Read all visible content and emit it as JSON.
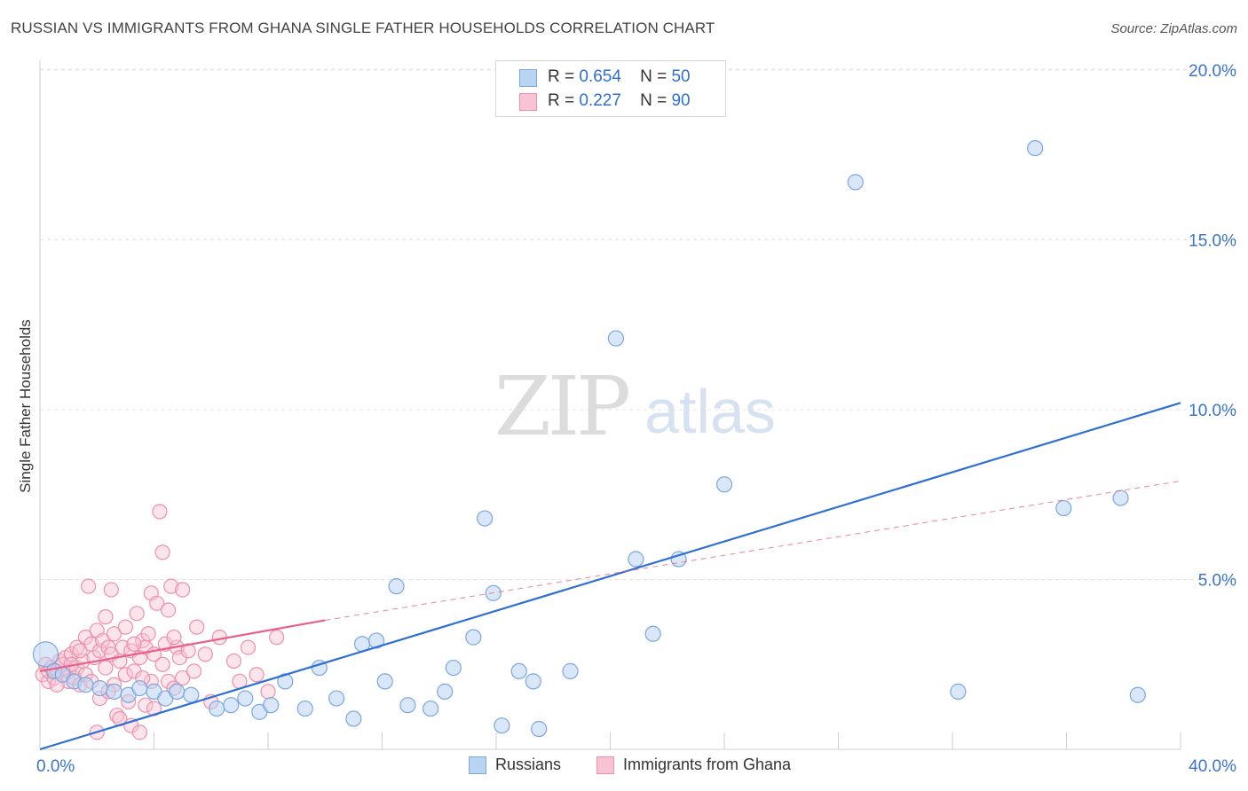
{
  "header": {
    "title": "RUSSIAN VS IMMIGRANTS FROM GHANA SINGLE FATHER HOUSEHOLDS CORRELATION CHART",
    "source": "Source: ZipAtlas.com"
  },
  "watermark": {
    "zip": "ZIP",
    "atlas": "atlas"
  },
  "legend": {
    "russians": {
      "r_label": "R =",
      "r_value": "0.654",
      "n_label": "N =",
      "n_value": "50",
      "name": "Russians"
    },
    "ghana": {
      "r_label": "R =",
      "r_value": "0.227",
      "n_label": "N =",
      "n_value": "90",
      "name": "Immigrants from Ghana"
    }
  },
  "colors": {
    "russians_fill": "#b9d3f2",
    "russians_stroke": "#7ba7de",
    "russians_line": "#2e6fd6",
    "ghana_fill": "#f8c3d2",
    "ghana_stroke": "#ee8fab",
    "ghana_line": "#e8608a",
    "axis_label": "#3a74cc",
    "grid": "#e4e4e4"
  },
  "chart_data": {
    "type": "scatter",
    "title": "RUSSIAN VS IMMIGRANTS FROM GHANA SINGLE FATHER HOUSEHOLDS CORRELATION CHART",
    "xlabel": "",
    "ylabel": "Single Father Households",
    "xlim": [
      0,
      40
    ],
    "ylim": [
      0,
      20.5
    ],
    "x_tick_labels": [
      {
        "value": 0,
        "label": "0.0%"
      },
      {
        "value": 40,
        "label": "40.0%"
      }
    ],
    "y_tick_labels": [
      {
        "value": 5,
        "label": "5.0%"
      },
      {
        "value": 10,
        "label": "10.0%"
      },
      {
        "value": 15,
        "label": "15.0%"
      },
      {
        "value": 20,
        "label": "20.0%"
      }
    ],
    "grid": true,
    "legend_position": "top-center",
    "series": [
      {
        "name": "Russians",
        "points": [
          [
            0.2,
            2.8
          ],
          [
            0.5,
            2.3
          ],
          [
            0.8,
            2.2
          ],
          [
            1.2,
            2.0
          ],
          [
            1.6,
            1.9
          ],
          [
            2.1,
            1.8
          ],
          [
            2.6,
            1.7
          ],
          [
            3.1,
            1.6
          ],
          [
            3.5,
            1.8
          ],
          [
            4.0,
            1.7
          ],
          [
            4.4,
            1.5
          ],
          [
            4.8,
            1.7
          ],
          [
            5.3,
            1.6
          ],
          [
            6.2,
            1.2
          ],
          [
            6.7,
            1.3
          ],
          [
            7.2,
            1.5
          ],
          [
            7.7,
            1.1
          ],
          [
            8.1,
            1.3
          ],
          [
            8.6,
            2.0
          ],
          [
            9.3,
            1.2
          ],
          [
            9.8,
            2.4
          ],
          [
            10.4,
            1.5
          ],
          [
            11.0,
            0.9
          ],
          [
            11.3,
            3.1
          ],
          [
            11.8,
            3.2
          ],
          [
            12.1,
            2.0
          ],
          [
            12.5,
            4.8
          ],
          [
            12.9,
            1.3
          ],
          [
            13.7,
            1.2
          ],
          [
            14.2,
            1.7
          ],
          [
            14.5,
            2.4
          ],
          [
            15.2,
            3.3
          ],
          [
            15.6,
            6.8
          ],
          [
            15.9,
            4.6
          ],
          [
            16.2,
            0.7
          ],
          [
            16.8,
            2.3
          ],
          [
            17.3,
            2.0
          ],
          [
            17.5,
            0.6
          ],
          [
            18.6,
            2.3
          ],
          [
            20.2,
            12.1
          ],
          [
            20.9,
            5.6
          ],
          [
            21.5,
            3.4
          ],
          [
            22.4,
            5.6
          ],
          [
            24.0,
            7.8
          ],
          [
            28.6,
            16.7
          ],
          [
            32.2,
            1.7
          ],
          [
            34.9,
            17.7
          ],
          [
            35.9,
            7.1
          ],
          [
            37.9,
            7.4
          ],
          [
            38.5,
            1.6
          ]
        ],
        "trend": {
          "x": [
            0,
            40
          ],
          "y": [
            0.0,
            10.2
          ]
        }
      },
      {
        "name": "Immigrants from Ghana",
        "points": [
          [
            0.1,
            2.2
          ],
          [
            0.2,
            2.5
          ],
          [
            0.3,
            2.0
          ],
          [
            0.3,
            2.3
          ],
          [
            0.4,
            2.4
          ],
          [
            0.5,
            2.1
          ],
          [
            0.6,
            2.3
          ],
          [
            0.7,
            2.6
          ],
          [
            0.8,
            2.2
          ],
          [
            0.8,
            2.5
          ],
          [
            0.9,
            2.7
          ],
          [
            1.0,
            2.3
          ],
          [
            1.0,
            2.0
          ],
          [
            1.1,
            2.8
          ],
          [
            1.2,
            2.1
          ],
          [
            1.3,
            3.0
          ],
          [
            1.3,
            2.4
          ],
          [
            1.4,
            1.9
          ],
          [
            1.5,
            2.6
          ],
          [
            1.6,
            3.3
          ],
          [
            1.6,
            2.2
          ],
          [
            1.7,
            4.8
          ],
          [
            1.8,
            3.1
          ],
          [
            1.8,
            2.0
          ],
          [
            1.9,
            2.7
          ],
          [
            2.0,
            3.5
          ],
          [
            2.0,
            0.5
          ],
          [
            2.1,
            2.9
          ],
          [
            2.1,
            1.5
          ],
          [
            2.2,
            3.2
          ],
          [
            2.3,
            3.9
          ],
          [
            2.3,
            2.4
          ],
          [
            2.4,
            3.0
          ],
          [
            2.5,
            2.8
          ],
          [
            2.5,
            4.7
          ],
          [
            2.6,
            1.9
          ],
          [
            2.6,
            3.4
          ],
          [
            2.7,
            1.0
          ],
          [
            2.8,
            2.6
          ],
          [
            2.8,
            0.9
          ],
          [
            2.9,
            3.0
          ],
          [
            3.0,
            2.2
          ],
          [
            3.0,
            3.6
          ],
          [
            3.1,
            1.4
          ],
          [
            3.2,
            2.9
          ],
          [
            3.2,
            0.7
          ],
          [
            3.3,
            2.3
          ],
          [
            3.4,
            4.0
          ],
          [
            3.5,
            2.7
          ],
          [
            3.5,
            0.5
          ],
          [
            3.6,
            3.2
          ],
          [
            3.7,
            1.3
          ],
          [
            3.7,
            3.0
          ],
          [
            3.8,
            3.4
          ],
          [
            3.9,
            2.0
          ],
          [
            3.9,
            4.6
          ],
          [
            4.0,
            2.8
          ],
          [
            4.0,
            1.2
          ],
          [
            4.1,
            4.3
          ],
          [
            4.2,
            7.0
          ],
          [
            4.3,
            2.5
          ],
          [
            4.3,
            5.8
          ],
          [
            4.4,
            3.1
          ],
          [
            4.5,
            4.1
          ],
          [
            4.5,
            2.0
          ],
          [
            4.6,
            4.8
          ],
          [
            4.7,
            1.8
          ],
          [
            4.8,
            3.0
          ],
          [
            4.9,
            2.7
          ],
          [
            5.0,
            2.1
          ],
          [
            5.0,
            4.7
          ],
          [
            5.2,
            2.9
          ],
          [
            5.4,
            2.3
          ],
          [
            5.5,
            3.6
          ],
          [
            5.8,
            2.8
          ],
          [
            6.0,
            1.4
          ],
          [
            6.3,
            3.3
          ],
          [
            6.8,
            2.6
          ],
          [
            7.0,
            2.0
          ],
          [
            7.3,
            3.0
          ],
          [
            7.6,
            2.2
          ],
          [
            8.0,
            1.7
          ],
          [
            8.3,
            3.3
          ],
          [
            0.6,
            1.9
          ],
          [
            1.1,
            2.5
          ],
          [
            1.4,
            2.9
          ],
          [
            2.4,
            1.7
          ],
          [
            3.3,
            3.1
          ],
          [
            3.6,
            2.1
          ],
          [
            4.7,
            3.3
          ]
        ],
        "trend_solid": {
          "x": [
            0,
            10
          ],
          "y": [
            2.3,
            3.8
          ]
        },
        "trend_dashed": {
          "x": [
            10,
            40
          ],
          "y": [
            3.8,
            7.9
          ]
        }
      }
    ]
  }
}
